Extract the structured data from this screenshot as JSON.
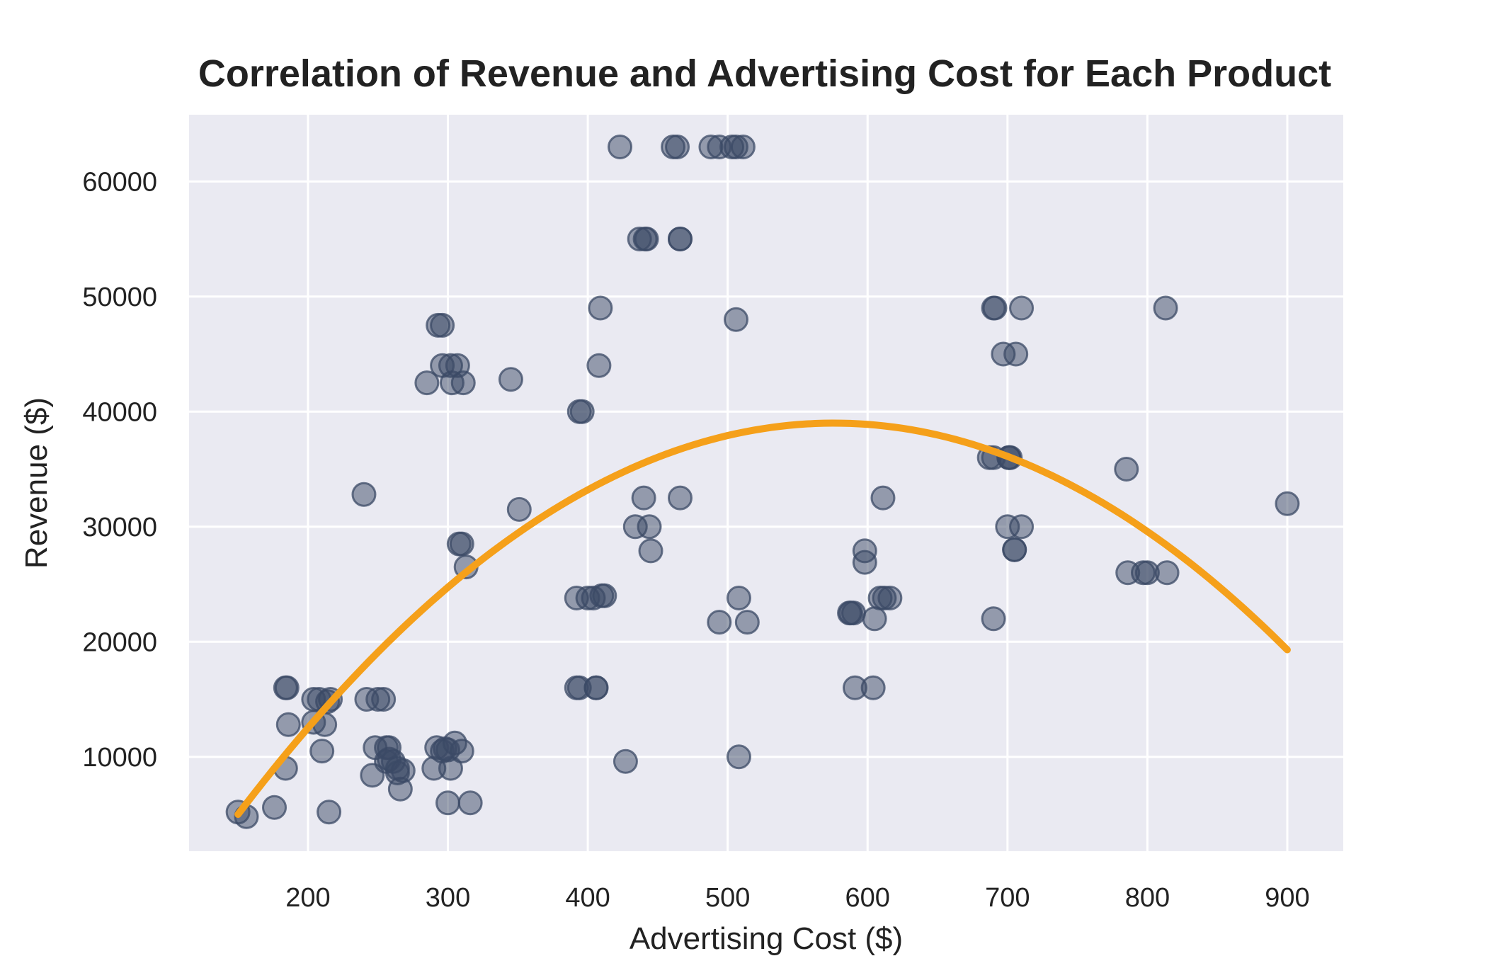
{
  "chart_data": {
    "type": "scatter",
    "title": "Correlation of Revenue and Advertising Cost for Each Product",
    "xlabel": "Advertising Cost ($)",
    "ylabel": "Revenue ($)",
    "xlim": [
      115,
      940
    ],
    "ylim": [
      1800,
      65800
    ],
    "xticks": [
      200,
      300,
      400,
      500,
      600,
      700,
      800,
      900
    ],
    "yticks": [
      10000,
      20000,
      30000,
      40000,
      50000,
      60000
    ],
    "xtick_labels": [
      "200",
      "300",
      "400",
      "500",
      "600",
      "700",
      "800",
      "900"
    ],
    "ytick_labels": [
      "10000",
      "20000",
      "30000",
      "40000",
      "50000",
      "60000"
    ],
    "grid": true,
    "point_color": "#3b4a66",
    "point_opacity": 0.5,
    "background_color": "#eaeaf2",
    "grid_color": "#ffffff",
    "series": [
      {
        "type": "scatter",
        "x": [
          150,
          156,
          176,
          184,
          184,
          185,
          186,
          204,
          204,
          208,
          210,
          212,
          214,
          215,
          216,
          240,
          242,
          246,
          248,
          250,
          254,
          256,
          256,
          258,
          258,
          261,
          264,
          264,
          266,
          268,
          285,
          290,
          292,
          293,
          296,
          296,
          296,
          298,
          300,
          300,
          302,
          302,
          303,
          305,
          307,
          308,
          310,
          310,
          311,
          313,
          316,
          345,
          351,
          392,
          392,
          394,
          394,
          396,
          400,
          404,
          406,
          406,
          408,
          409,
          410,
          412,
          423,
          427,
          434,
          437,
          440,
          441,
          442,
          444,
          445,
          461,
          464,
          466,
          466,
          466,
          488,
          494,
          494,
          503,
          506,
          506,
          508,
          508,
          511,
          514,
          587,
          588,
          590,
          591,
          598,
          598,
          604,
          605,
          609,
          611,
          612,
          616,
          687,
          690,
          690,
          690,
          691,
          697,
          700,
          701,
          701,
          702,
          705,
          705,
          706,
          710,
          710,
          785,
          786,
          797,
          800,
          813,
          814,
          900
        ],
        "y": [
          5200,
          4800,
          5600,
          9000,
          16000,
          16000,
          12800,
          15000,
          13000,
          15000,
          10500,
          12800,
          14800,
          5200,
          15000,
          32800,
          15000,
          8400,
          10800,
          15000,
          15000,
          10800,
          9600,
          10800,
          9800,
          9600,
          9000,
          8600,
          7200,
          8800,
          42500,
          9000,
          10800,
          47500,
          47500,
          44000,
          10500,
          10700,
          10600,
          6000,
          44000,
          9000,
          42500,
          11200,
          44000,
          28500,
          10500,
          28500,
          42500,
          26500,
          6000,
          42800,
          31500,
          16000,
          23800,
          16000,
          40000,
          40000,
          23800,
          23800,
          16000,
          16000,
          44000,
          49000,
          24000,
          24000,
          63000,
          9600,
          30000,
          55000,
          32500,
          55000,
          55000,
          30000,
          27900,
          63000,
          63000,
          55000,
          55000,
          32500,
          63000,
          21700,
          63000,
          63000,
          63000,
          48000,
          23800,
          10000,
          63000,
          21700,
          22500,
          22500,
          22500,
          16000,
          26900,
          27900,
          16000,
          22000,
          23800,
          32500,
          23800,
          23800,
          36000,
          22000,
          36000,
          49000,
          49000,
          45000,
          30000,
          36000,
          36000,
          36000,
          28000,
          28000,
          45000,
          30000,
          49000,
          35000,
          26000,
          26000,
          26000,
          49000,
          26000,
          32000
        ]
      },
      {
        "type": "line",
        "name": "",
        "color": "#f5a01a",
        "x": [
          150,
          900
        ],
        "y": [
          5000,
          19300
        ],
        "peak": {
          "x": 575,
          "y": 39000
        }
      }
    ]
  }
}
